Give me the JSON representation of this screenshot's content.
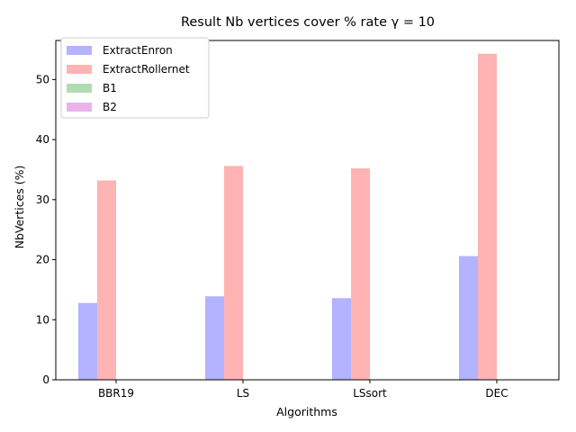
{
  "chart_data": {
    "type": "bar",
    "title": "Result Nb vertices cover  % rate γ = 10",
    "xlabel": "Algorithms",
    "ylabel": "NbVertices (%)",
    "categories": [
      "BBR19",
      "LS",
      "LSsort",
      "DEC"
    ],
    "ylim": [
      0,
      56.5
    ],
    "yticks": [
      0,
      10,
      20,
      30,
      40,
      50
    ],
    "grid": false,
    "legend_position": "top-left",
    "series": [
      {
        "name": "ExtractEnron",
        "color": "#b3b3ff",
        "values": [
          12.8,
          13.9,
          13.6,
          20.6
        ]
      },
      {
        "name": "ExtractRollernet",
        "color": "#ffb3b3",
        "values": [
          33.2,
          35.6,
          35.2,
          54.3
        ]
      },
      {
        "name": "B1",
        "color": "#b3dbb3",
        "values": [
          0,
          0,
          0,
          0
        ]
      },
      {
        "name": "B2",
        "color": "#ebb3eb",
        "values": [
          0,
          0,
          0,
          0
        ]
      }
    ]
  }
}
